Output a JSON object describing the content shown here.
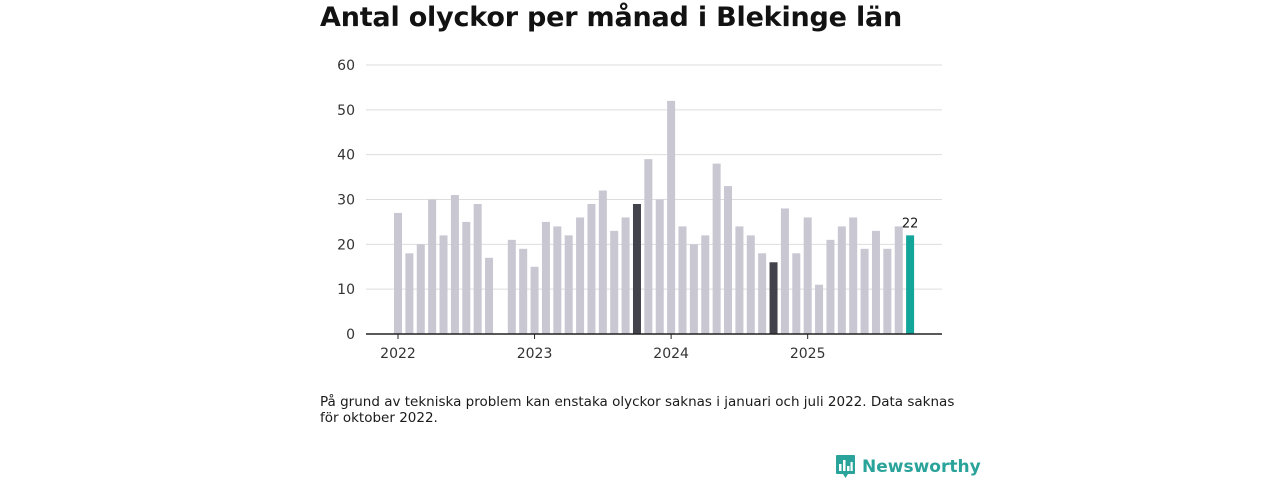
{
  "chart_data": {
    "type": "bar",
    "title": "Antal olyckor per månad i Blekinge län",
    "ylim": [
      0,
      60
    ],
    "yticks": [
      0,
      10,
      20,
      30,
      40,
      50,
      60
    ],
    "xticks": [
      {
        "index": 0,
        "label": "2022"
      },
      {
        "index": 12,
        "label": "2023"
      },
      {
        "index": 24,
        "label": "2024"
      },
      {
        "index": 36,
        "label": "2025"
      }
    ],
    "categories": [
      "2022-01",
      "2022-02",
      "2022-03",
      "2022-04",
      "2022-05",
      "2022-06",
      "2022-07",
      "2022-08",
      "2022-09",
      "2022-10",
      "2022-11",
      "2022-12",
      "2023-01",
      "2023-02",
      "2023-03",
      "2023-04",
      "2023-05",
      "2023-06",
      "2023-07",
      "2023-08",
      "2023-09",
      "2023-10",
      "2023-11",
      "2023-12",
      "2024-01",
      "2024-02",
      "2024-03",
      "2024-04",
      "2024-05",
      "2024-06",
      "2024-07",
      "2024-08",
      "2024-09",
      "2024-10",
      "2024-11",
      "2024-12",
      "2025-01",
      "2025-02",
      "2025-03",
      "2025-04",
      "2025-05",
      "2025-06",
      "2025-07",
      "2025-08",
      "2025-09",
      "2025-10"
    ],
    "values": [
      27,
      18,
      20,
      30,
      22,
      31,
      25,
      29,
      17,
      null,
      21,
      19,
      15,
      25,
      24,
      22,
      26,
      29,
      32,
      23,
      26,
      29,
      39,
      30,
      52,
      24,
      20,
      22,
      38,
      33,
      24,
      22,
      18,
      16,
      28,
      18,
      26,
      11,
      21,
      24,
      26,
      19,
      23,
      19,
      24,
      22
    ],
    "highlight": {
      "2023-10": "dark",
      "2024-10": "dark",
      "2025-10": "accent"
    },
    "value_labels": [
      {
        "index": 45,
        "text": "22"
      }
    ],
    "colors": {
      "default": "#c8c7d2",
      "dark": "#43434b",
      "accent": "#12a59a",
      "grid": "#dddddd",
      "axis": "#222222"
    }
  },
  "note": "På grund av tekniska problem kan enstaka olyckor saknas i januari och juli 2022. Data saknas för oktober 2022.",
  "brand": {
    "name": "Newsworthy",
    "icon": "bar-chart-icon",
    "color": "#2aa39a"
  }
}
